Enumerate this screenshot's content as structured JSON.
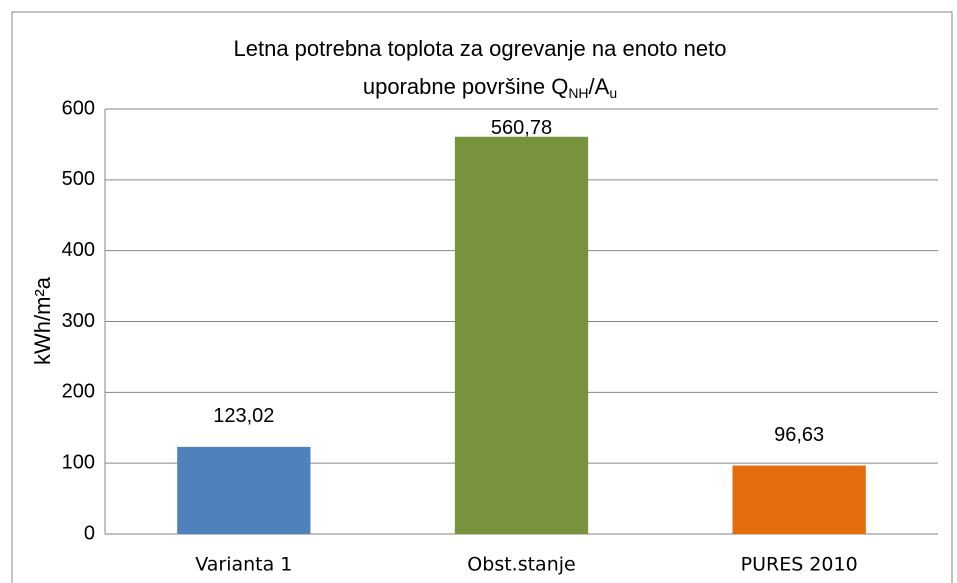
{
  "chart_data": {
    "type": "bar",
    "title": [
      "Letna potrebna toplota za ogrevanje na enoto neto",
      "uporabne površine Q",
      "NH",
      "/A",
      "u"
    ],
    "y_label": "kWh/m²a",
    "categories": [
      "Varianta 1",
      "Obst.stanje",
      "PURES 2010"
    ],
    "values": [
      123.02,
      560.78,
      96.63
    ],
    "value_labels": [
      "123,02",
      "560,78",
      "96,63"
    ],
    "colors": [
      "#4f81bd",
      "#77933c",
      "#e46c0a"
    ],
    "ylim": [
      0,
      600
    ],
    "yticks": [
      0,
      100,
      200,
      300,
      400,
      500,
      600
    ],
    "grid": true
  }
}
